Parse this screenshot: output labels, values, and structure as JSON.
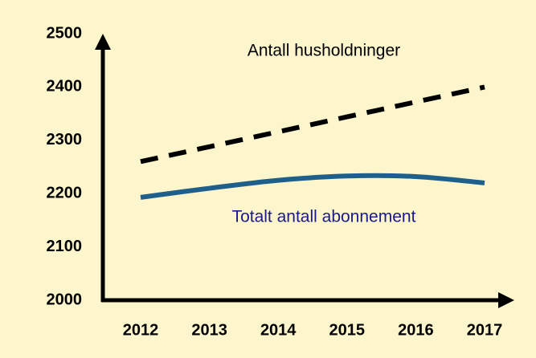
{
  "chart_data": {
    "type": "line",
    "categories": [
      "2012",
      "2013",
      "2014",
      "2015",
      "2016",
      "2017"
    ],
    "series": [
      {
        "name": "Antall husholdninger",
        "color": "#000000",
        "line_style": "dashed",
        "values": [
          2260,
          2288,
          2316,
          2344,
          2372,
          2400
        ]
      },
      {
        "name": "Totalt antall abonnement",
        "color": "#1f5f8b",
        "label_color": "#1a1a8c",
        "line_style": "solid",
        "values": [
          2193,
          2210,
          2225,
          2233,
          2232,
          2220
        ]
      }
    ],
    "ylim": [
      2000,
      2500
    ],
    "yticks": [
      2000,
      2100,
      2200,
      2300,
      2400,
      2500
    ],
    "grid": false
  }
}
